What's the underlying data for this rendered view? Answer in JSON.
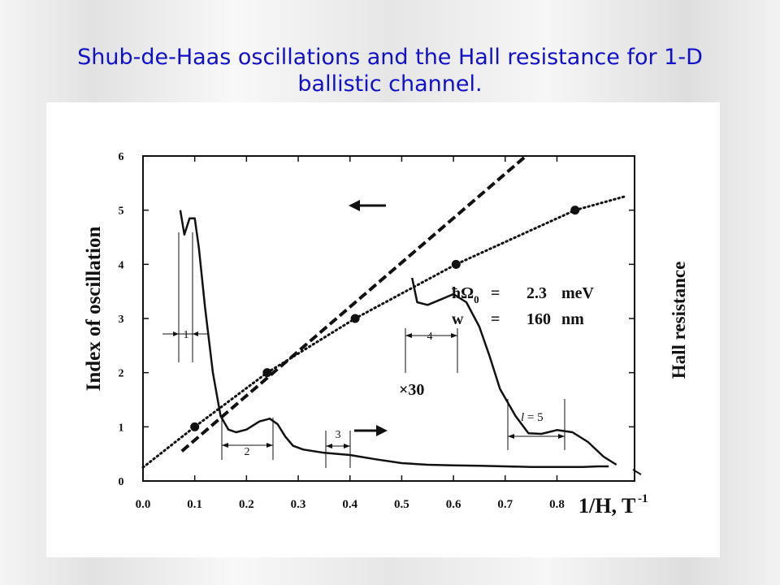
{
  "slide": {
    "title": "Shub-de-Haas oscillations and the Hall resistance for 1-D ballistic channel."
  },
  "chart_data": {
    "type": "line",
    "xlabel": "1/H, T",
    "xlabel_exponent": "-1",
    "ylabel": "Index of oscillation",
    "ylabel_right": "Hall resistance",
    "xlim": [
      0.0,
      0.95
    ],
    "ylim": [
      0,
      6
    ],
    "x_ticks": [
      "0.0",
      "0.1",
      "0.2",
      "0.3",
      "0.4",
      "0.5",
      "0.6",
      "0.7",
      "0.8"
    ],
    "y_ticks": [
      "0",
      "1",
      "2",
      "3",
      "4",
      "5",
      "6"
    ],
    "index_points": {
      "x": [
        0.1,
        0.24,
        0.41,
        0.605,
        0.835
      ],
      "y": [
        1,
        2,
        3,
        4,
        5
      ]
    },
    "series": [
      {
        "style": "dashed",
        "x": [
          0.075,
          0.74
        ],
        "y": [
          0.55,
          6.0
        ]
      },
      {
        "style": "dotted",
        "x": [
          0.0,
          0.1,
          0.24,
          0.41,
          0.605,
          0.835,
          0.93
        ],
        "y": [
          0.25,
          1.0,
          2.0,
          3.0,
          4.0,
          5.0,
          5.25
        ]
      },
      {
        "style": "solid",
        "x": [
          0.072,
          0.08,
          0.09,
          0.1,
          0.108,
          0.12,
          0.135,
          0.15,
          0.165,
          0.18,
          0.2,
          0.225,
          0.245,
          0.26,
          0.275,
          0.29,
          0.31,
          0.35,
          0.4,
          0.45,
          0.5,
          0.55,
          0.6,
          0.65,
          0.7,
          0.75,
          0.8,
          0.85,
          0.88,
          0.9
        ],
        "y": [
          5.0,
          4.55,
          4.85,
          4.85,
          4.3,
          3.2,
          2.0,
          1.2,
          0.95,
          0.9,
          0.95,
          1.1,
          1.15,
          1.05,
          0.82,
          0.65,
          0.58,
          0.52,
          0.48,
          0.4,
          0.33,
          0.3,
          0.29,
          0.28,
          0.27,
          0.26,
          0.26,
          0.26,
          0.27,
          0.27
        ]
      },
      {
        "style": "solid",
        "x": [
          0.52,
          0.53,
          0.55,
          0.575,
          0.6,
          0.625,
          0.65,
          0.67,
          0.69,
          0.72,
          0.745,
          0.77,
          0.8,
          0.83,
          0.86,
          0.89,
          0.915
        ],
        "y": [
          3.75,
          3.3,
          3.25,
          3.35,
          3.45,
          3.3,
          2.85,
          2.3,
          1.7,
          1.2,
          0.88,
          0.87,
          0.94,
          0.9,
          0.72,
          0.45,
          0.3
        ]
      }
    ],
    "annotations": {
      "hbar_label": "ħΩ",
      "hbar_sub": "0",
      "hbar_eq": "=",
      "hbar_value": "2.3",
      "hbar_unit": "meV",
      "w_label": "w",
      "w_eq": "=",
      "w_value": "160",
      "w_unit": "nm",
      "scale_factor": "×30",
      "bracket_1": "1",
      "bracket_2": "2",
      "bracket_3": "3",
      "bracket_4": "4",
      "bracket_5_var": "l",
      "bracket_5_rest": " = 5"
    },
    "grid": false,
    "legend": "none"
  }
}
